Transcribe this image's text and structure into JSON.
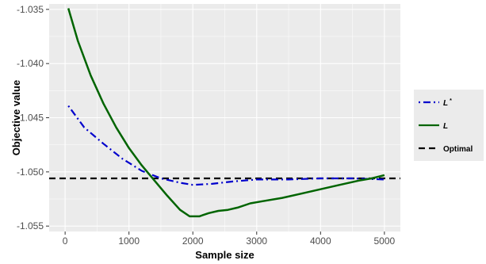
{
  "chart_data": {
    "type": "line",
    "xlabel": "Sample size",
    "ylabel": "Objective value",
    "xlim": [
      -250,
      5250
    ],
    "ylim": [
      -1.0555,
      -1.0345
    ],
    "x_ticks": [
      0,
      1000,
      2000,
      3000,
      4000,
      5000
    ],
    "x_tick_labels": [
      "0",
      "1000",
      "2000",
      "3000",
      "4000",
      "5000"
    ],
    "y_ticks": [
      -1.055,
      -1.05,
      -1.045,
      -1.04,
      -1.035
    ],
    "y_tick_labels": [
      "-1.055",
      "-1.050",
      "-1.045",
      "-1.040",
      "-1.035"
    ],
    "grid": true,
    "legend_position": "right",
    "series": [
      {
        "name": "L*",
        "label_main": "L",
        "label_sup": "*",
        "color": "#0000cc",
        "style": "dotdash",
        "x": [
          50,
          300,
          600,
          900,
          1200,
          1500,
          1800,
          2000,
          2300,
          2600,
          3000,
          3500,
          4000,
          4500,
          5000
        ],
        "y": [
          -1.0439,
          -1.0459,
          -1.0474,
          -1.0488,
          -1.0499,
          -1.0506,
          -1.051,
          -1.0512,
          -1.0511,
          -1.0509,
          -1.0507,
          -1.0507,
          -1.0506,
          -1.0506,
          -1.0507
        ]
      },
      {
        "name": "L",
        "label_main": "L",
        "label_sup": "",
        "color": "#006400",
        "style": "solid",
        "x": [
          50,
          200,
          400,
          600,
          800,
          1000,
          1200,
          1400,
          1600,
          1800,
          1950,
          2100,
          2250,
          2400,
          2550,
          2700,
          2900,
          3100,
          3400,
          3700,
          4000,
          4300,
          4600,
          4800,
          5000
        ],
        "y": [
          -1.0349,
          -1.0379,
          -1.0411,
          -1.0437,
          -1.0459,
          -1.0478,
          -1.0494,
          -1.0508,
          -1.0522,
          -1.0535,
          -1.0541,
          -1.0541,
          -1.0538,
          -1.0536,
          -1.0535,
          -1.0533,
          -1.0529,
          -1.0527,
          -1.0524,
          -1.052,
          -1.0516,
          -1.0512,
          -1.0508,
          -1.0506,
          -1.0503
        ]
      },
      {
        "name": "Optimal",
        "label_main": "Optimal",
        "label_sup": "",
        "color": "#000000",
        "style": "dashed",
        "x": [
          -250,
          5250
        ],
        "y": [
          -1.0506,
          -1.0506
        ]
      }
    ]
  }
}
